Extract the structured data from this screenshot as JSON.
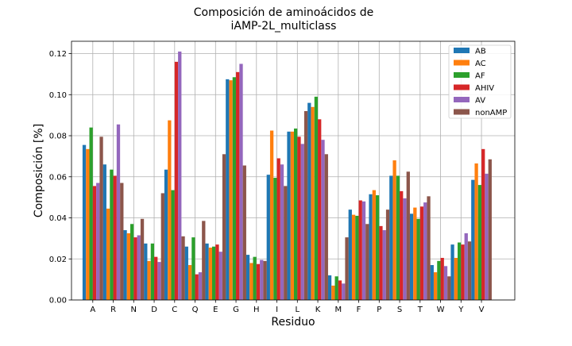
{
  "chart_data": {
    "type": "bar",
    "title_line1": "Composición de aminoácidos de",
    "title_line2": "iAMP-2L_multiclass",
    "xlabel": "Residuo",
    "ylabel": "Composición [%]",
    "ylim": [
      0,
      0.126
    ],
    "yticks": [
      "0.00",
      "0.02",
      "0.04",
      "0.06",
      "0.08",
      "0.10",
      "0.12"
    ],
    "grid": true,
    "legend_position": "top-right",
    "categories": [
      "A",
      "R",
      "N",
      "D",
      "C",
      "Q",
      "E",
      "G",
      "H",
      "I",
      "L",
      "K",
      "M",
      "F",
      "P",
      "S",
      "T",
      "W",
      "Y",
      "V"
    ],
    "series": [
      {
        "name": "AB",
        "color": "#1f77b4",
        "values": [
          0.0755,
          0.066,
          0.034,
          0.0275,
          0.0635,
          0.026,
          0.0275,
          0.1075,
          0.022,
          0.061,
          0.082,
          0.096,
          0.012,
          0.044,
          0.0515,
          0.0605,
          0.042,
          0.017,
          0.027,
          0.0585
        ]
      },
      {
        "name": "AC",
        "color": "#ff7f0e",
        "values": [
          0.0735,
          0.0445,
          0.0325,
          0.019,
          0.0875,
          0.017,
          0.0255,
          0.107,
          0.018,
          0.0825,
          0.082,
          0.094,
          0.007,
          0.0415,
          0.0535,
          0.068,
          0.045,
          0.0135,
          0.0205,
          0.0665
        ]
      },
      {
        "name": "AF",
        "color": "#2ca02c",
        "values": [
          0.084,
          0.0635,
          0.037,
          0.0275,
          0.0535,
          0.0305,
          0.026,
          0.1085,
          0.021,
          0.0595,
          0.0835,
          0.099,
          0.0115,
          0.041,
          0.051,
          0.0605,
          0.0395,
          0.019,
          0.028,
          0.056
        ]
      },
      {
        "name": "AHIV",
        "color": "#d62728",
        "values": [
          0.0555,
          0.0605,
          0.0305,
          0.021,
          0.116,
          0.0125,
          0.027,
          0.111,
          0.0175,
          0.069,
          0.0795,
          0.088,
          0.0095,
          0.0485,
          0.036,
          0.053,
          0.0455,
          0.0205,
          0.027,
          0.0735
        ]
      },
      {
        "name": "AV",
        "color": "#9467bd",
        "values": [
          0.057,
          0.0855,
          0.0315,
          0.0185,
          0.121,
          0.0135,
          0.0235,
          0.115,
          0.0195,
          0.066,
          0.076,
          0.078,
          0.008,
          0.048,
          0.034,
          0.0495,
          0.0475,
          0.0165,
          0.0325,
          0.0615
        ]
      },
      {
        "name": "nonAMP",
        "color": "#8c564b",
        "values": [
          0.0795,
          0.057,
          0.0395,
          0.052,
          0.031,
          0.0385,
          0.071,
          0.0655,
          0.019,
          0.0555,
          0.092,
          0.071,
          0.0305,
          0.037,
          0.044,
          0.0625,
          0.0505,
          0.0115,
          0.0285,
          0.0685
        ]
      }
    ]
  }
}
